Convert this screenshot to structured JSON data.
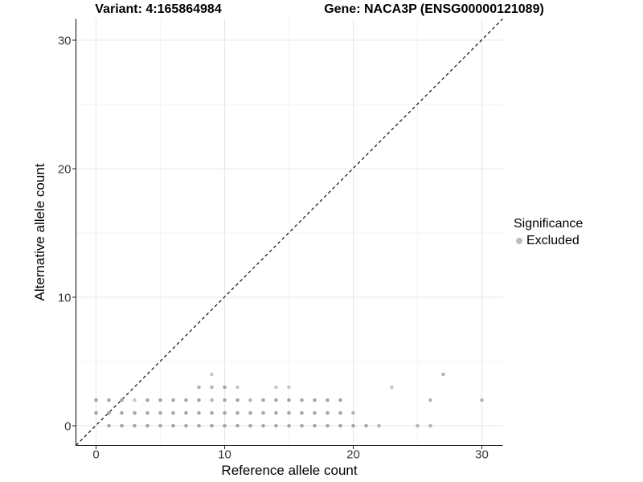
{
  "page": {
    "background": "#ffffff"
  },
  "chart_data": {
    "type": "scatter",
    "title_variant": "Variant: 4:165864984",
    "title_gene": "Gene: NACA3P (ENSG00000121089)",
    "xlabel": "Reference allele count",
    "ylabel": "Alternative allele count",
    "x_ticks": [
      0,
      10,
      20,
      30
    ],
    "y_ticks": [
      0,
      10,
      20,
      30
    ],
    "x_minor_gridlines": [
      5,
      15,
      25
    ],
    "y_minor_gridlines": [
      5,
      15,
      25
    ],
    "xlim": [
      -1.6,
      31.6
    ],
    "ylim": [
      -1.6,
      31.6
    ],
    "grid": "major and minor, light gray on white panel",
    "identity_line": {
      "equation": "y = x",
      "style": "dashed",
      "color": "#000000"
    },
    "legend": {
      "title": "Significance",
      "position": "right",
      "entries": [
        {
          "label": "Excluded",
          "color": "#bdbdbd"
        }
      ]
    },
    "point_palette": {
      "dark": "#a6a6a6",
      "medium": "#b5b5b5",
      "light": "#c8c8c8"
    },
    "colors": {
      "axis_line": "#1a1a1a",
      "tick_text": "#383838",
      "major_grid": "#e7e7e7",
      "minor_grid": "#f3f3f3"
    },
    "points": [
      [
        1,
        0,
        "dark"
      ],
      [
        2,
        0,
        "dark"
      ],
      [
        3,
        0,
        "dark"
      ],
      [
        4,
        0,
        "dark"
      ],
      [
        5,
        0,
        "dark"
      ],
      [
        6,
        0,
        "dark"
      ],
      [
        7,
        0,
        "dark"
      ],
      [
        8,
        0,
        "dark"
      ],
      [
        9,
        0,
        "dark"
      ],
      [
        10,
        0,
        "dark"
      ],
      [
        11,
        0,
        "dark"
      ],
      [
        12,
        0,
        "dark"
      ],
      [
        13,
        0,
        "dark"
      ],
      [
        14,
        0,
        "dark"
      ],
      [
        15,
        0,
        "dark"
      ],
      [
        16,
        0,
        "dark"
      ],
      [
        17,
        0,
        "dark"
      ],
      [
        18,
        0,
        "dark"
      ],
      [
        19,
        0,
        "dark"
      ],
      [
        20,
        0,
        "dark"
      ],
      [
        21,
        0,
        "dark"
      ],
      [
        22,
        0,
        "medium"
      ],
      [
        25,
        0,
        "medium"
      ],
      [
        26,
        0,
        "medium"
      ],
      [
        0,
        1,
        "dark"
      ],
      [
        1,
        1,
        "dark"
      ],
      [
        2,
        1,
        "dark"
      ],
      [
        3,
        1,
        "dark"
      ],
      [
        4,
        1,
        "dark"
      ],
      [
        5,
        1,
        "dark"
      ],
      [
        6,
        1,
        "dark"
      ],
      [
        7,
        1,
        "dark"
      ],
      [
        8,
        1,
        "dark"
      ],
      [
        9,
        1,
        "dark"
      ],
      [
        10,
        1,
        "dark"
      ],
      [
        11,
        1,
        "dark"
      ],
      [
        12,
        1,
        "dark"
      ],
      [
        13,
        1,
        "dark"
      ],
      [
        14,
        1,
        "dark"
      ],
      [
        15,
        1,
        "dark"
      ],
      [
        16,
        1,
        "dark"
      ],
      [
        17,
        1,
        "dark"
      ],
      [
        18,
        1,
        "dark"
      ],
      [
        19,
        1,
        "dark"
      ],
      [
        20,
        1,
        "medium"
      ],
      [
        0,
        2,
        "dark"
      ],
      [
        1,
        2,
        "dark"
      ],
      [
        2,
        2,
        "dark"
      ],
      [
        3,
        2,
        "light"
      ],
      [
        4,
        2,
        "dark"
      ],
      [
        5,
        2,
        "dark"
      ],
      [
        6,
        2,
        "dark"
      ],
      [
        7,
        2,
        "dark"
      ],
      [
        8,
        2,
        "dark"
      ],
      [
        9,
        2,
        "medium"
      ],
      [
        10,
        2,
        "dark"
      ],
      [
        11,
        2,
        "dark"
      ],
      [
        12,
        2,
        "medium"
      ],
      [
        13,
        2,
        "dark"
      ],
      [
        14,
        2,
        "dark"
      ],
      [
        15,
        2,
        "dark"
      ],
      [
        16,
        2,
        "dark"
      ],
      [
        17,
        2,
        "dark"
      ],
      [
        18,
        2,
        "dark"
      ],
      [
        19,
        2,
        "dark"
      ],
      [
        26,
        2,
        "medium"
      ],
      [
        30,
        2,
        "medium"
      ],
      [
        8,
        3,
        "medium"
      ],
      [
        9,
        3,
        "medium"
      ],
      [
        10,
        3,
        "dark"
      ],
      [
        11,
        3,
        "light"
      ],
      [
        14,
        3,
        "light"
      ],
      [
        15,
        3,
        "light"
      ],
      [
        23,
        3,
        "light"
      ],
      [
        9,
        4,
        "light"
      ],
      [
        27,
        4,
        "medium"
      ]
    ]
  }
}
